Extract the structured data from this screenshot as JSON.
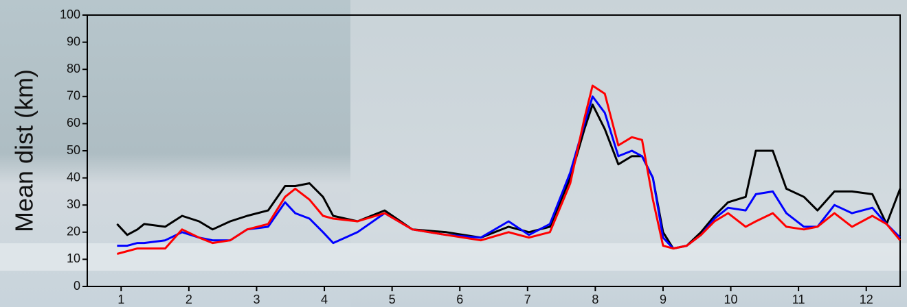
{
  "chart_data": {
    "type": "line",
    "ylabel": "Mean dist (km)",
    "x": [
      0.94,
      1.09,
      1.24,
      1.34,
      1.65,
      1.9,
      2.15,
      2.35,
      2.61,
      2.86,
      3.17,
      3.42,
      3.57,
      3.78,
      3.98,
      4.13,
      4.49,
      4.89,
      5.3,
      5.8,
      6.31,
      6.72,
      7.02,
      7.33,
      7.63,
      7.84,
      7.96,
      8.14,
      8.34,
      8.54,
      8.69,
      8.85,
      9.0,
      9.15,
      9.35,
      9.56,
      9.76,
      9.96,
      10.22,
      10.37,
      10.62,
      10.82,
      11.08,
      11.28,
      11.53,
      11.79,
      12.09,
      12.3,
      12.5
    ],
    "series": [
      {
        "color": "#000000",
        "values": [
          23,
          19,
          21,
          23,
          22,
          26,
          24,
          21,
          24,
          26,
          28,
          37,
          37,
          38,
          33,
          26,
          24,
          28,
          21,
          20,
          18,
          22,
          20,
          22,
          40,
          58,
          67,
          58,
          45,
          48,
          48,
          40,
          20,
          14,
          15,
          20,
          26,
          31,
          33,
          50,
          50,
          36,
          33,
          28,
          35,
          35,
          34,
          23,
          36
        ]
      },
      {
        "color": "#0000ff",
        "values": [
          15,
          15,
          16,
          16,
          17,
          20,
          18,
          17,
          17,
          21,
          22,
          31,
          27,
          25,
          20,
          16,
          20,
          27,
          21,
          19,
          18,
          24,
          19,
          23,
          42,
          60,
          70,
          64,
          48,
          50,
          48,
          40,
          18,
          14,
          15,
          19,
          25,
          29,
          28,
          34,
          35,
          27,
          22,
          22,
          30,
          27,
          29,
          23,
          18
        ]
      },
      {
        "color": "#ff0000",
        "values": [
          12,
          13,
          14,
          14,
          14,
          21,
          18,
          16,
          17,
          21,
          23,
          33,
          36,
          32,
          26,
          25,
          24,
          27,
          21,
          19,
          17,
          20,
          18,
          20,
          38,
          62,
          74,
          71,
          52,
          55,
          54,
          32,
          15,
          14,
          15,
          19,
          24,
          27,
          22,
          24,
          27,
          22,
          21,
          22,
          27,
          22,
          26,
          23,
          17
        ]
      }
    ],
    "xlim": [
      0.5,
      12.5
    ],
    "xticks": [
      1,
      2,
      3,
      4,
      5,
      6,
      7,
      8,
      9,
      10,
      11,
      12
    ],
    "ylim": [
      0,
      100
    ],
    "yticks": [
      0,
      10,
      20,
      30,
      40,
      50,
      60,
      70,
      80,
      90,
      100
    ]
  }
}
